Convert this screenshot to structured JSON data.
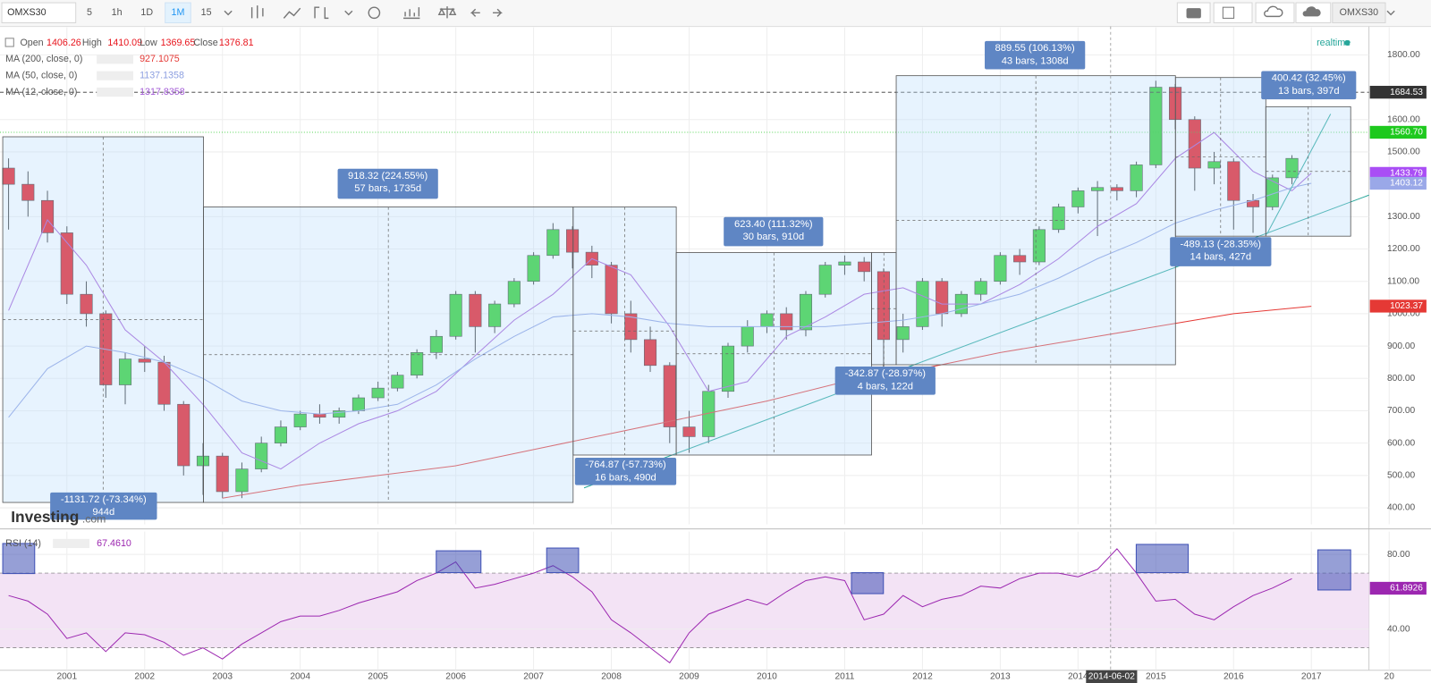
{
  "toolbar": {
    "symbol": "OMXS30",
    "intervals": [
      "5",
      "1h",
      "1D",
      "1M",
      "15"
    ],
    "right_symbol": "OMXS30"
  },
  "legend": {
    "ohlc": [
      {
        "label": "Open",
        "value": "1406.26"
      },
      {
        "label": "High",
        "value": "1410.09"
      },
      {
        "label": "Low",
        "value": "1369.65"
      },
      {
        "label": "Close",
        "value": "1376.81"
      }
    ],
    "indicators": [
      {
        "name": "MA (200, close, 0)",
        "value": "927.1075",
        "color": "#e53935"
      },
      {
        "name": "MA (50, close, 0)",
        "value": "1137.1358",
        "color": "#8c9fe0"
      },
      {
        "name": "MA (12, close, 0)",
        "value": "1317.8358",
        "color": "#a35bd6"
      }
    ],
    "realtime": "realtime",
    "rsi_name": "RSI (14)",
    "rsi_value": "67.4610"
  },
  "branding": {
    "logo": "Investing",
    "suffix": ".com"
  },
  "crosshair": {
    "date": "2014-06-02"
  },
  "measurements": [
    {
      "change": "-1131.72 (-73.34%)",
      "detail": "944d"
    },
    {
      "change": "918.32 (224.55%)",
      "detail": "57 bars, 1735d"
    },
    {
      "change": "-764.87 (-57.73%)",
      "detail": "16 bars, 490d"
    },
    {
      "change": "623.40 (111.32%)",
      "detail": "30 bars, 910d"
    },
    {
      "change": "-342.87 (-28.97%)",
      "detail": "4 bars, 122d"
    },
    {
      "change": "889.55 (106.13%)",
      "detail": "43 bars, 1308d"
    },
    {
      "change": "-489.13 (-28.35%)",
      "detail": "14 bars, 427d"
    },
    {
      "change": "400.42 (32.45%)",
      "detail": "13 bars, 397d"
    }
  ],
  "chart_data": [
    {
      "type": "candlestick",
      "up_color": "#2bd12b",
      "down_color": "#e8141c",
      "x": [
        2000.25,
        2000.5,
        2000.75,
        2001,
        2001.25,
        2001.5,
        2001.75,
        2002,
        2002.25,
        2002.5,
        2002.75,
        2003,
        2003.25,
        2003.5,
        2003.75,
        2004,
        2004.25,
        2004.5,
        2004.75,
        2005,
        2005.25,
        2005.5,
        2005.75,
        2006,
        2006.25,
        2006.5,
        2006.75,
        2007,
        2007.25,
        2007.5,
        2007.75,
        2008,
        2008.25,
        2008.5,
        2008.75,
        2009,
        2009.25,
        2009.5,
        2009.75,
        2010,
        2010.25,
        2010.5,
        2010.75,
        2011,
        2011.25,
        2011.5,
        2011.75,
        2012,
        2012.25,
        2012.5,
        2012.75,
        2013,
        2013.25,
        2013.5,
        2013.75,
        2014,
        2014.25,
        2014.5,
        2014.75,
        2015,
        2015.25,
        2015.5,
        2015.75,
        2016,
        2016.25,
        2016.5,
        2016.75
      ],
      "open": [
        1450,
        1400,
        1350,
        1250,
        1060,
        1000,
        780,
        860,
        850,
        720,
        530,
        560,
        450,
        520,
        600,
        650,
        690,
        680,
        700,
        740,
        770,
        810,
        880,
        930,
        1060,
        960,
        1030,
        1100,
        1180,
        1260,
        1190,
        1150,
        1000,
        920,
        840,
        650,
        620,
        760,
        900,
        960,
        1000,
        950,
        1060,
        1150,
        1160,
        1130,
        920,
        960,
        1100,
        1000,
        1060,
        1100,
        1180,
        1160,
        1260,
        1330,
        1380,
        1390,
        1380,
        1460,
        1700,
        1600,
        1450,
        1470,
        1350,
        1330,
        1420
      ],
      "high": [
        1480,
        1440,
        1380,
        1270,
        1100,
        1010,
        880,
        900,
        870,
        730,
        600,
        570,
        540,
        620,
        670,
        700,
        720,
        710,
        750,
        790,
        820,
        890,
        950,
        1070,
        1070,
        1040,
        1110,
        1190,
        1280,
        1270,
        1210,
        1160,
        1040,
        960,
        850,
        700,
        780,
        910,
        980,
        1010,
        1020,
        1070,
        1160,
        1180,
        1175,
        1140,
        1000,
        1110,
        1110,
        1070,
        1110,
        1190,
        1200,
        1270,
        1340,
        1390,
        1410,
        1400,
        1470,
        1720,
        1710,
        1610,
        1500,
        1480,
        1370,
        1430,
        1490
      ],
      "low": [
        1260,
        1300,
        1220,
        1030,
        960,
        740,
        720,
        820,
        700,
        500,
        440,
        430,
        430,
        510,
        590,
        640,
        660,
        660,
        690,
        730,
        760,
        800,
        860,
        920,
        880,
        940,
        1020,
        1090,
        1170,
        1140,
        1110,
        970,
        880,
        820,
        600,
        570,
        600,
        740,
        880,
        940,
        920,
        930,
        1050,
        1120,
        1100,
        830,
        880,
        950,
        960,
        990,
        1040,
        1090,
        1120,
        1150,
        1250,
        1310,
        1240,
        1350,
        1360,
        1450,
        1570,
        1380,
        1400,
        1260,
        1250,
        1320,
        1400
      ],
      "close": [
        1400,
        1350,
        1250,
        1060,
        1000,
        780,
        860,
        850,
        720,
        530,
        560,
        450,
        520,
        600,
        650,
        690,
        680,
        700,
        740,
        770,
        810,
        880,
        930,
        1060,
        960,
        1030,
        1100,
        1180,
        1260,
        1190,
        1150,
        1000,
        920,
        840,
        650,
        620,
        760,
        900,
        960,
        1000,
        950,
        1060,
        1150,
        1160,
        1130,
        920,
        960,
        1100,
        1000,
        1060,
        1100,
        1180,
        1160,
        1260,
        1330,
        1380,
        1390,
        1380,
        1460,
        1700,
        1600,
        1450,
        1470,
        1350,
        1330,
        1420,
        1480
      ],
      "series": [
        {
          "name": "MA (12, close, 0)",
          "color": "#a35bd6",
          "x": [
            2000.25,
            2000.75,
            2001.25,
            2001.75,
            2002.25,
            2002.75,
            2003.25,
            2003.75,
            2004.25,
            2004.75,
            2005.25,
            2005.75,
            2006.25,
            2006.75,
            2007.25,
            2007.75,
            2008.25,
            2008.75,
            2009.25,
            2009.75,
            2010.25,
            2010.75,
            2011.25,
            2011.75,
            2012.25,
            2012.75,
            2013.25,
            2013.75,
            2014.25,
            2014.75,
            2015.25,
            2015.75,
            2016.25,
            2016.75,
            2017
          ],
          "values": [
            1010,
            1290,
            1150,
            950,
            850,
            720,
            570,
            520,
            600,
            660,
            700,
            760,
            870,
            980,
            1060,
            1170,
            1120,
            960,
            760,
            790,
            930,
            990,
            1060,
            1080,
            1030,
            1030,
            1090,
            1170,
            1270,
            1340,
            1480,
            1560,
            1440,
            1380,
            1434
          ]
        },
        {
          "name": "MA (50, close, 0)",
          "color": "#8c9fe0",
          "x": [
            2000.25,
            2000.75,
            2001.25,
            2001.75,
            2002.25,
            2002.75,
            2003.25,
            2003.75,
            2004.25,
            2004.75,
            2005.25,
            2005.75,
            2006.25,
            2006.75,
            2007.25,
            2007.75,
            2008.25,
            2008.75,
            2009.25,
            2009.75,
            2010.25,
            2010.75,
            2011.25,
            2011.75,
            2012.25,
            2012.75,
            2013.25,
            2013.75,
            2014.25,
            2014.75,
            2015.25,
            2015.75,
            2016.25,
            2016.75,
            2017
          ],
          "values": [
            680,
            830,
            900,
            880,
            850,
            800,
            730,
            700,
            690,
            700,
            720,
            780,
            860,
            930,
            990,
            1000,
            990,
            970,
            960,
            960,
            960,
            960,
            970,
            980,
            1000,
            1030,
            1060,
            1110,
            1170,
            1220,
            1280,
            1320,
            1350,
            1390,
            1403
          ]
        },
        {
          "name": "MA (200, close, 0)",
          "color": "#e53935",
          "x": [
            2003,
            2004,
            2005,
            2006,
            2007,
            2008,
            2009,
            2010,
            2011,
            2012,
            2013,
            2014,
            2015,
            2016,
            2017
          ],
          "values": [
            430,
            470,
            500,
            530,
            580,
            630,
            680,
            730,
            790,
            830,
            880,
            920,
            960,
            1000,
            1023
          ]
        }
      ],
      "price_tags": [
        {
          "value": 1684.53,
          "label": "1684.53",
          "color": "#333333",
          "line": "dashed"
        },
        {
          "value": 1560.7,
          "label": "1560.70",
          "color": "#1ec91e",
          "line": "dotted"
        },
        {
          "value": 1433.79,
          "label": "1433.79",
          "color": "#a94ef5"
        },
        {
          "value": 1403.12,
          "label": "1403.12",
          "color": "#9aa8e8"
        },
        {
          "value": 1023.37,
          "label": "1023.37",
          "color": "#e53935"
        }
      ],
      "xlim": [
        2000.14,
        2017.74
      ],
      "ylim": [
        349,
        1885
      ],
      "yticks": [
        {
          "value": 1800,
          "label": "1800.00"
        },
        {
          "value": 1600,
          "label": "1600.00"
        },
        {
          "value": 1500,
          "label": "1500.00"
        },
        {
          "value": 1300,
          "label": "1300.00"
        },
        {
          "value": 1200,
          "label": "1200.00"
        },
        {
          "value": 1100,
          "label": "1100.00"
        },
        {
          "value": 1000,
          "label": "1000.00"
        },
        {
          "value": 900,
          "label": "900.00"
        },
        {
          "value": 800,
          "label": "800.00"
        },
        {
          "value": 700,
          "label": "700.00"
        },
        {
          "value": 600,
          "label": "600.00"
        },
        {
          "value": 500,
          "label": "500.00"
        },
        {
          "value": 400,
          "label": "400.00"
        }
      ],
      "grid": true
    },
    {
      "type": "line",
      "color": "#9c27b0",
      "x": [
        2000.25,
        2000.5,
        2000.75,
        2001,
        2001.25,
        2001.5,
        2001.75,
        2002,
        2002.25,
        2002.5,
        2002.75,
        2003,
        2003.25,
        2003.5,
        2003.75,
        2004,
        2004.25,
        2004.5,
        2004.75,
        2005,
        2005.25,
        2005.5,
        2005.75,
        2006,
        2006.25,
        2006.5,
        2006.75,
        2007,
        2007.25,
        2007.5,
        2007.75,
        2008,
        2008.25,
        2008.5,
        2008.75,
        2009,
        2009.25,
        2009.5,
        2009.75,
        2010,
        2010.25,
        2010.5,
        2010.75,
        2011,
        2011.25,
        2011.5,
        2011.75,
        2012,
        2012.25,
        2012.5,
        2012.75,
        2013,
        2013.25,
        2013.5,
        2013.75,
        2014,
        2014.25,
        2014.5,
        2014.75,
        2015,
        2015.25,
        2015.5,
        2015.75,
        2016,
        2016.25,
        2016.5,
        2016.75
      ],
      "values": [
        58,
        55,
        48,
        35,
        38,
        28,
        38,
        37,
        33,
        26,
        30,
        24,
        32,
        38,
        44,
        47,
        47,
        50,
        54,
        57,
        60,
        66,
        70,
        76,
        62,
        64,
        67,
        70,
        74,
        68,
        60,
        45,
        38,
        30,
        22,
        38,
        48,
        52,
        56,
        53,
        60,
        66,
        68,
        66,
        45,
        48,
        58,
        52,
        56,
        58,
        63,
        62,
        67,
        70,
        70,
        68,
        72,
        83,
        70,
        55,
        56,
        48,
        45,
        52,
        58,
        62,
        67
      ],
      "band": [
        30,
        70
      ],
      "last_value": 61.8926,
      "xlim": [
        2000.14,
        2017.74
      ],
      "ylim": [
        18,
        92.2
      ],
      "yticks": [
        {
          "value": 80,
          "label": "80.00"
        },
        {
          "value": 40,
          "label": "40.00"
        }
      ],
      "xticks": [
        2001,
        2002,
        2003,
        2004,
        2005,
        2006,
        2007,
        2008,
        2009,
        2010,
        2011,
        2012,
        2013,
        2014,
        2015,
        2016,
        2017,
        {
          "value": 2018,
          "label": "20"
        }
      ]
    }
  ]
}
